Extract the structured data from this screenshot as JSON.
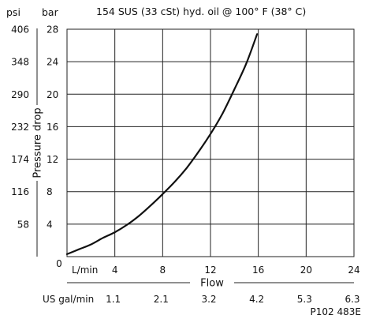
{
  "chart_data": {
    "type": "line",
    "title": "154 SUS (33 cSt) hyd. oil @ 100° F (38° C)",
    "figure_code": "P102 483E",
    "xlabel": "Flow",
    "ylabel": "Pressure drop",
    "x_unit_primary": "L/min",
    "x_unit_secondary": "US gal/min",
    "y_unit_primary": "bar",
    "y_unit_secondary": "psi",
    "xlim": [
      0,
      24
    ],
    "ylim": [
      0,
      28
    ],
    "x_ticks": [
      {
        "value": 4,
        "label": "4",
        "gal_label": "1.1"
      },
      {
        "value": 8,
        "label": "8",
        "gal_label": "2.1"
      },
      {
        "value": 12,
        "label": "12",
        "gal_label": "3.2"
      },
      {
        "value": 16,
        "label": "16",
        "gal_label": "4.2"
      },
      {
        "value": 20,
        "label": "20",
        "gal_label": "5.3"
      },
      {
        "value": 24,
        "label": "24",
        "gal_label": "6.3"
      }
    ],
    "x_origin_label": "0",
    "y_ticks": [
      {
        "value": 4,
        "label": "4",
        "psi_label": "58"
      },
      {
        "value": 8,
        "label": "8",
        "psi_label": "116"
      },
      {
        "value": 12,
        "label": "12",
        "psi_label": "174"
      },
      {
        "value": 16,
        "label": "16",
        "psi_label": "232"
      },
      {
        "value": 20,
        "label": "20",
        "psi_label": "290"
      },
      {
        "value": 24,
        "label": "24",
        "psi_label": "348"
      },
      {
        "value": 28,
        "label": "28",
        "psi_label": "406"
      }
    ],
    "grid": true,
    "series": [
      {
        "color": "#111111",
        "x": [
          0,
          1,
          2,
          3,
          4,
          5,
          6,
          7,
          8,
          9,
          10,
          11,
          12,
          13,
          14,
          15,
          15.9
        ],
        "y": [
          0.3,
          0.9,
          1.5,
          2.3,
          3.0,
          3.9,
          5.0,
          6.3,
          7.7,
          9.2,
          10.9,
          12.9,
          15.1,
          17.6,
          20.6,
          23.8,
          27.4
        ]
      }
    ]
  }
}
